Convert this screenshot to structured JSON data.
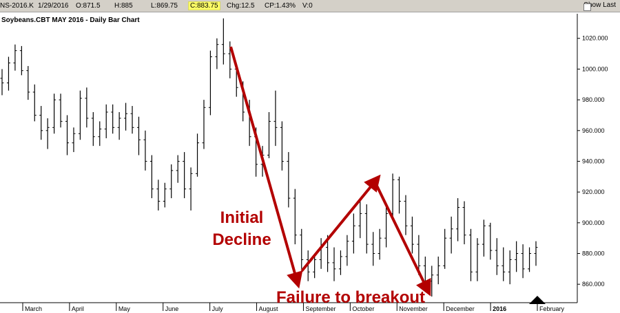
{
  "header": {
    "symbol": "NS-2016.K",
    "date": "1/29/2016",
    "open": "O:871.5",
    "high": "H:885",
    "low": "L:869.75",
    "close": "C:883.75",
    "change": "Chg:12.5",
    "change_pct": "CP:1.43%",
    "volume": "V:0",
    "show_last_label": "Show Last"
  },
  "chart_title": "Soybeans.CBT MAY 2016 - Daily Bar Chart",
  "colors": {
    "bars": "#000000",
    "annotation": "#b30000",
    "grid": "#b0b0b0"
  },
  "annotations": {
    "initial_line1": "Initial",
    "initial_line2": "Decline",
    "failure": "Failure to breakout"
  },
  "chart_data": {
    "type": "ohlc",
    "title": "Soybeans.CBT MAY 2016 - Daily Bar Chart",
    "ylim": [
      848,
      1036
    ],
    "y_ticks": [
      860,
      880,
      900,
      920,
      940,
      960,
      980,
      1000,
      1020
    ],
    "y_tick_labels": [
      "860.000",
      "880.000",
      "900.000",
      "920.000",
      "940.000",
      "960.000",
      "980.000",
      "1000.000",
      "1020.000"
    ],
    "x_labels": [
      "March",
      "April",
      "May",
      "June",
      "July",
      "August",
      "September",
      "October",
      "November",
      "December",
      "2016",
      "February"
    ],
    "series": [
      {
        "values": [
          [
            994,
            1000,
            983,
            991
          ],
          [
            991,
            1008,
            986,
            1004
          ],
          [
            1004,
            1016,
            999,
            1012
          ],
          [
            1012,
            1015,
            996,
            999
          ],
          [
            999,
            1002,
            980,
            985
          ],
          [
            985,
            990,
            966,
            970
          ],
          [
            970,
            976,
            954,
            960
          ],
          [
            960,
            968,
            948,
            962
          ],
          [
            962,
            984,
            958,
            980
          ],
          [
            980,
            984,
            962,
            966
          ],
          [
            966,
            970,
            944,
            952
          ],
          [
            952,
            962,
            946,
            958
          ],
          [
            958,
            986,
            954,
            981
          ],
          [
            981,
            988,
            962,
            968
          ],
          [
            968,
            972,
            950,
            956
          ],
          [
            956,
            966,
            950,
            961
          ],
          [
            961,
            977,
            955,
            972
          ],
          [
            972,
            977,
            958,
            962
          ],
          [
            962,
            972,
            954,
            968
          ],
          [
            968,
            978,
            960,
            971
          ],
          [
            971,
            976,
            958,
            962
          ],
          [
            962,
            969,
            944,
            954
          ],
          [
            954,
            960,
            934,
            940
          ],
          [
            940,
            944,
            916,
            922
          ],
          [
            922,
            928,
            908,
            914
          ],
          [
            914,
            926,
            910,
            922
          ],
          [
            922,
            938,
            916,
            934
          ],
          [
            934,
            944,
            926,
            940
          ],
          [
            940,
            946,
            916,
            922
          ],
          [
            922,
            936,
            908,
            932
          ],
          [
            932,
            958,
            930,
            952
          ],
          [
            952,
            980,
            948,
            975
          ],
          [
            975,
            1012,
            970,
            1008
          ],
          [
            1008,
            1020,
            1000,
            1016
          ],
          [
            1016,
            1033,
            1003,
            1010
          ],
          [
            1010,
            1018,
            994,
            1000
          ],
          [
            1000,
            1002,
            982,
            988
          ],
          [
            988,
            992,
            966,
            972
          ],
          [
            972,
            980,
            950,
            956
          ],
          [
            956,
            962,
            930,
            938
          ],
          [
            938,
            950,
            930,
            944
          ],
          [
            944,
            972,
            942,
            966
          ],
          [
            966,
            986,
            950,
            962
          ],
          [
            962,
            966,
            934,
            940
          ],
          [
            940,
            946,
            910,
            916
          ],
          [
            916,
            922,
            886,
            892
          ],
          [
            892,
            896,
            870,
            876
          ],
          [
            876,
            882,
            862,
            868
          ],
          [
            868,
            880,
            864,
            876
          ],
          [
            876,
            890,
            870,
            884
          ],
          [
            884,
            892,
            868,
            874
          ],
          [
            874,
            884,
            862,
            870
          ],
          [
            870,
            882,
            866,
            878
          ],
          [
            878,
            892,
            872,
            888
          ],
          [
            888,
            906,
            880,
            898
          ],
          [
            898,
            914,
            890,
            906
          ],
          [
            906,
            912,
            880,
            886
          ],
          [
            886,
            894,
            872,
            880
          ],
          [
            880,
            896,
            876,
            890
          ],
          [
            890,
            912,
            884,
            906
          ],
          [
            906,
            932,
            902,
            928
          ],
          [
            928,
            930,
            906,
            914
          ],
          [
            914,
            918,
            892,
            898
          ],
          [
            898,
            904,
            880,
            886
          ],
          [
            886,
            892,
            866,
            872
          ],
          [
            872,
            878,
            856,
            862
          ],
          [
            862,
            872,
            852,
            866
          ],
          [
            866,
            878,
            860,
            872
          ],
          [
            872,
            896,
            870,
            890
          ],
          [
            890,
            904,
            880,
            896
          ],
          [
            896,
            916,
            888,
            910
          ],
          [
            910,
            914,
            886,
            892
          ],
          [
            892,
            896,
            862,
            868
          ],
          [
            868,
            890,
            862,
            886
          ],
          [
            886,
            902,
            878,
            898
          ],
          [
            898,
            900,
            876,
            882
          ],
          [
            882,
            890,
            866,
            872
          ],
          [
            872,
            884,
            862,
            868
          ],
          [
            868,
            882,
            860,
            876
          ],
          [
            876,
            888,
            868,
            880
          ],
          [
            880,
            886,
            864,
            870
          ],
          [
            870,
            884,
            868,
            880
          ],
          [
            880,
            888,
            872,
            884
          ]
        ]
      }
    ]
  }
}
